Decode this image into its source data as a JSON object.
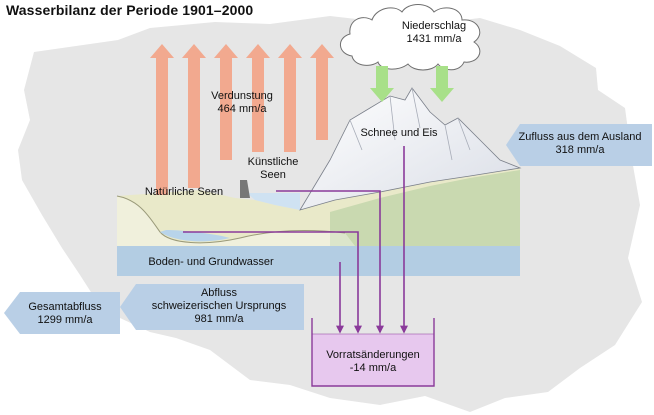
{
  "title": "Wasserbilanz der Periode 1901–2000",
  "labels": {
    "niederschlag": {
      "name": "Niederschlag",
      "value": "1431 mm/a"
    },
    "verdunstung": {
      "name": "Verdunstung",
      "value": "464 mm/a"
    },
    "kuenstliche_seen": {
      "line1": "Künstliche",
      "line2": "Seen"
    },
    "natuerliche_seen": "Natürliche Seen",
    "schnee_eis": "Schnee und Eis",
    "zufluss": {
      "name": "Zufluss aus dem Ausland",
      "value": "318 mm/a"
    },
    "boden_grundwasser": "Boden- und Grundwasser",
    "gesamtabfluss": {
      "name": "Gesamtabfluss",
      "value": "1299 mm/a"
    },
    "abfluss": {
      "line1": "Abfluss",
      "line2": "schweizerischen Ursprungs",
      "value": "981 mm/a"
    },
    "vorrat": {
      "name": "Vorratsänderungen",
      "value": "-14 mm/a"
    }
  },
  "colors": {
    "background_map": "#e6e6e6",
    "evaporation_arrow": "#f2a98f",
    "precip_arrow": "#a8e089",
    "flow_line": "#8a3a9a",
    "storage_box": "#e7c8ee",
    "groundwater": "#b3cde3",
    "terrain": "#e9e9c9",
    "inflow_box": "#b9cfe6"
  }
}
